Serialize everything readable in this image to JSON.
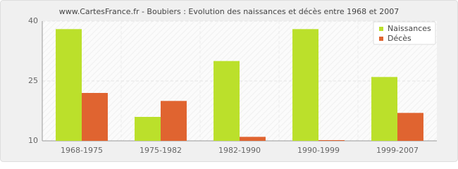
{
  "chart_data": {
    "type": "bar",
    "title": "www.CartesFrance.fr - Boubiers : Evolution des naissances et décès entre 1968 et 2007",
    "categories": [
      "1968-1975",
      "1975-1982",
      "1982-1990",
      "1990-1999",
      "1999-2007"
    ],
    "series": [
      {
        "name": "Naissances",
        "color": "#bbe02b",
        "values": [
          38,
          16,
          30,
          38,
          26
        ]
      },
      {
        "name": "Décès",
        "color": "#e06430",
        "values": [
          22,
          20,
          11,
          10,
          17
        ]
      }
    ],
    "ylim": [
      10,
      40
    ],
    "yticks": [
      10,
      25,
      40
    ],
    "grid": true,
    "legend": "top-right"
  }
}
